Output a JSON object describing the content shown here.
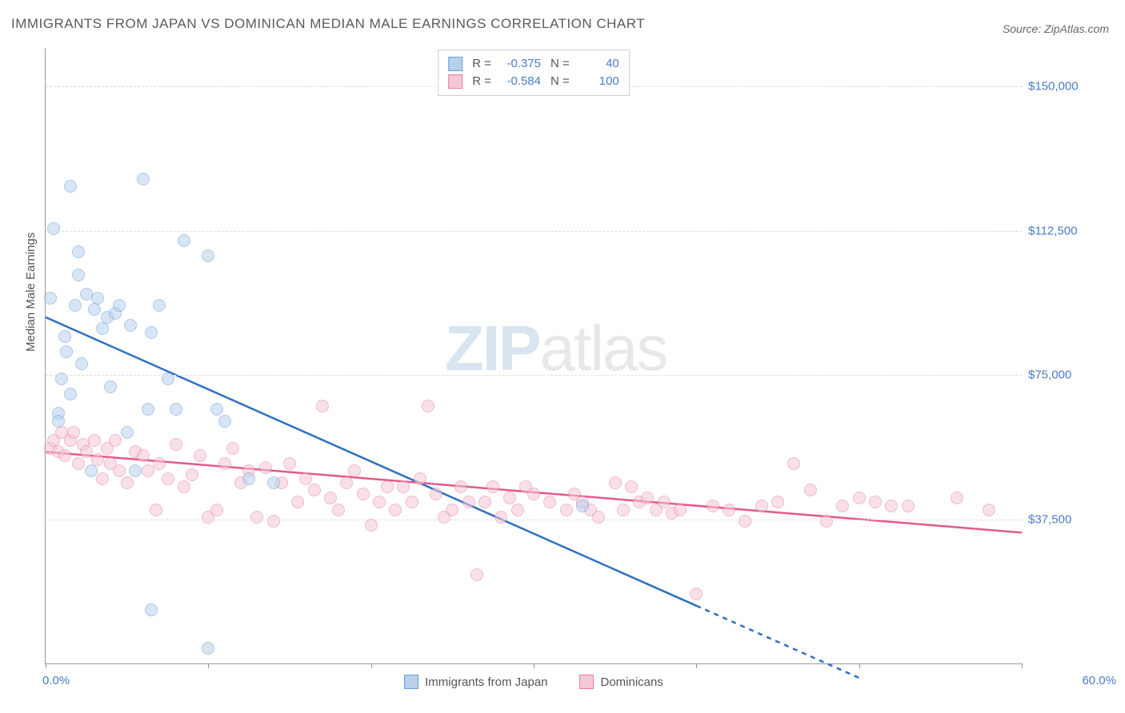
{
  "title": "IMMIGRANTS FROM JAPAN VS DOMINICAN MEDIAN MALE EARNINGS CORRELATION CHART",
  "source": "Source: ZipAtlas.com",
  "watermark_a": "ZIP",
  "watermark_b": "atlas",
  "chart": {
    "type": "scatter",
    "ylabel": "Median Male Earnings",
    "xlim": [
      0,
      60
    ],
    "ylim": [
      0,
      160000
    ],
    "yticks": [
      37500,
      75000,
      112500,
      150000
    ],
    "ytick_labels": [
      "$37,500",
      "$75,000",
      "$112,500",
      "$150,000"
    ],
    "xticks_minor": [
      0,
      10,
      20,
      30,
      40,
      50,
      60
    ],
    "xtick_labels": {
      "start": "0.0%",
      "end": "60.0%"
    },
    "background_color": "#ffffff",
    "grid_color": "#dddddd",
    "axis_color": "#999999",
    "tick_label_color": "#4a7bc8",
    "point_radius": 8,
    "point_opacity": 0.55,
    "series": [
      {
        "name": "Immigrants from Japan",
        "key": "japan",
        "fill": "#b8d0ec",
        "stroke": "#6a9fd8",
        "line_color": "#2e6fc4",
        "R": "-0.375",
        "N": "40",
        "regression": {
          "x1": 0,
          "y1": 90000,
          "x2": 40,
          "y2": 15000,
          "extend_dash_to_x": 50
        },
        "points": [
          [
            0.3,
            95000
          ],
          [
            0.5,
            113000
          ],
          [
            0.8,
            65000
          ],
          [
            0.8,
            63000
          ],
          [
            1.0,
            74000
          ],
          [
            1.2,
            85000
          ],
          [
            1.3,
            81000
          ],
          [
            1.5,
            124000
          ],
          [
            1.5,
            70000
          ],
          [
            1.8,
            93000
          ],
          [
            2.0,
            107000
          ],
          [
            2.0,
            101000
          ],
          [
            2.2,
            78000
          ],
          [
            2.5,
            96000
          ],
          [
            2.8,
            50000
          ],
          [
            3.0,
            92000
          ],
          [
            3.2,
            95000
          ],
          [
            3.5,
            87000
          ],
          [
            3.8,
            90000
          ],
          [
            4.0,
            72000
          ],
          [
            4.3,
            91000
          ],
          [
            4.5,
            93000
          ],
          [
            5.0,
            60000
          ],
          [
            5.2,
            88000
          ],
          [
            5.5,
            50000
          ],
          [
            6.0,
            126000
          ],
          [
            6.3,
            66000
          ],
          [
            6.5,
            86000
          ],
          [
            6.5,
            14000
          ],
          [
            7.0,
            93000
          ],
          [
            7.5,
            74000
          ],
          [
            8.0,
            66000
          ],
          [
            8.5,
            110000
          ],
          [
            10.0,
            106000
          ],
          [
            10.0,
            4000
          ],
          [
            10.5,
            66000
          ],
          [
            11.0,
            63000
          ],
          [
            12.5,
            48000
          ],
          [
            14.0,
            47000
          ],
          [
            33.0,
            41000
          ]
        ]
      },
      {
        "name": "Dominicans",
        "key": "dominicans",
        "fill": "#f5c8d6",
        "stroke": "#e77fa6",
        "line_color": "#e3588c",
        "R": "-0.584",
        "N": "100",
        "regression": {
          "x1": 0,
          "y1": 55000,
          "x2": 60,
          "y2": 34000
        },
        "points": [
          [
            0.3,
            56000
          ],
          [
            0.5,
            58000
          ],
          [
            0.8,
            55000
          ],
          [
            1.0,
            60000
          ],
          [
            1.2,
            54000
          ],
          [
            1.5,
            58000
          ],
          [
            1.7,
            60000
          ],
          [
            2.0,
            52000
          ],
          [
            2.3,
            57000
          ],
          [
            2.5,
            55000
          ],
          [
            3.0,
            58000
          ],
          [
            3.2,
            53000
          ],
          [
            3.5,
            48000
          ],
          [
            3.8,
            56000
          ],
          [
            4.0,
            52000
          ],
          [
            4.3,
            58000
          ],
          [
            4.5,
            50000
          ],
          [
            5.0,
            47000
          ],
          [
            5.5,
            55000
          ],
          [
            6.0,
            54000
          ],
          [
            6.3,
            50000
          ],
          [
            6.8,
            40000
          ],
          [
            7.0,
            52000
          ],
          [
            7.5,
            48000
          ],
          [
            8.0,
            57000
          ],
          [
            8.5,
            46000
          ],
          [
            9.0,
            49000
          ],
          [
            9.5,
            54000
          ],
          [
            10.0,
            38000
          ],
          [
            10.5,
            40000
          ],
          [
            11.0,
            52000
          ],
          [
            11.5,
            56000
          ],
          [
            12.0,
            47000
          ],
          [
            12.5,
            50000
          ],
          [
            13.0,
            38000
          ],
          [
            13.5,
            51000
          ],
          [
            14.0,
            37000
          ],
          [
            14.5,
            47000
          ],
          [
            15.0,
            52000
          ],
          [
            15.5,
            42000
          ],
          [
            16.0,
            48000
          ],
          [
            16.5,
            45000
          ],
          [
            17.0,
            67000
          ],
          [
            17.5,
            43000
          ],
          [
            18.0,
            40000
          ],
          [
            18.5,
            47000
          ],
          [
            19.0,
            50000
          ],
          [
            19.5,
            44000
          ],
          [
            20.0,
            36000
          ],
          [
            20.5,
            42000
          ],
          [
            21.0,
            46000
          ],
          [
            21.5,
            40000
          ],
          [
            22.0,
            46000
          ],
          [
            22.5,
            42000
          ],
          [
            23.0,
            48000
          ],
          [
            23.5,
            67000
          ],
          [
            24.0,
            44000
          ],
          [
            24.5,
            38000
          ],
          [
            25.0,
            40000
          ],
          [
            25.5,
            46000
          ],
          [
            26.0,
            42000
          ],
          [
            26.5,
            23000
          ],
          [
            27.0,
            42000
          ],
          [
            27.5,
            46000
          ],
          [
            28.0,
            38000
          ],
          [
            28.5,
            43000
          ],
          [
            29.0,
            40000
          ],
          [
            29.5,
            46000
          ],
          [
            30.0,
            44000
          ],
          [
            31.0,
            42000
          ],
          [
            32.0,
            40000
          ],
          [
            32.5,
            44000
          ],
          [
            33.0,
            42000
          ],
          [
            33.5,
            40000
          ],
          [
            34.0,
            38000
          ],
          [
            35.0,
            47000
          ],
          [
            35.5,
            40000
          ],
          [
            36.0,
            46000
          ],
          [
            36.5,
            42000
          ],
          [
            37.0,
            43000
          ],
          [
            37.5,
            40000
          ],
          [
            38.0,
            42000
          ],
          [
            38.5,
            39000
          ],
          [
            39.0,
            40000
          ],
          [
            40.0,
            18000
          ],
          [
            41.0,
            41000
          ],
          [
            42.0,
            40000
          ],
          [
            43.0,
            37000
          ],
          [
            44.0,
            41000
          ],
          [
            45.0,
            42000
          ],
          [
            46.0,
            52000
          ],
          [
            47.0,
            45000
          ],
          [
            48.0,
            37000
          ],
          [
            49.0,
            41000
          ],
          [
            50.0,
            43000
          ],
          [
            51.0,
            42000
          ],
          [
            52.0,
            41000
          ],
          [
            53.0,
            41000
          ],
          [
            56.0,
            43000
          ],
          [
            58.0,
            40000
          ]
        ]
      }
    ]
  }
}
